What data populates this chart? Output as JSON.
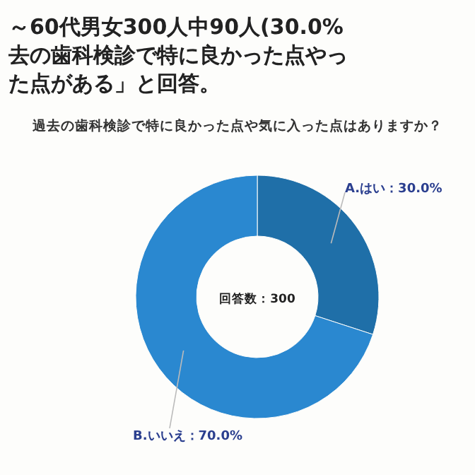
{
  "chart_data": {
    "type": "donut",
    "title": "～60代男女300人中90人(30.0%去の歯科検診で特に良かった点やった点がある」と回答。",
    "subtitle": "過去の歯科検診で特に良かった点や気に入った点はありますか？",
    "annotations": [
      "回答数：300"
    ],
    "categories": [
      "A.はい",
      "B.いいえ"
    ],
    "values": [
      30.0,
      70.0
    ],
    "value_labels": [
      "30.0%",
      "70.0%"
    ],
    "colors": [
      "#1f6fa8",
      "#2a88d0"
    ]
  }
}
